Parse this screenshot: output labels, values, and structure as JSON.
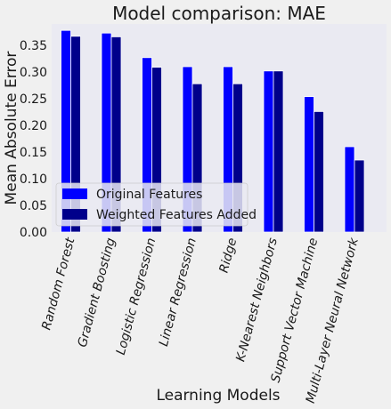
{
  "chart_data": {
    "type": "bar",
    "title": "Model comparison: MAE",
    "xlabel": "Learning Models",
    "ylabel": "Mean Absolute Error",
    "categories": [
      "Random Forest",
      "Gradient Boosting",
      "Logistic Regression",
      "Linear Regression",
      "Ridge",
      "K-Nearest Neighbors",
      "Support Vector Machine",
      "Multi-Layer Neural Network"
    ],
    "series": [
      {
        "name": "Original Features",
        "color": "#0000ff",
        "values": [
          0.378,
          0.373,
          0.327,
          0.31,
          0.31,
          0.302,
          0.254,
          0.16
        ]
      },
      {
        "name": "Weighted Features Added",
        "color": "#00008b",
        "values": [
          0.367,
          0.366,
          0.309,
          0.278,
          0.278,
          0.302,
          0.226,
          0.135
        ]
      }
    ],
    "ylim": [
      0,
      0.39
    ],
    "yticks": [
      "0.00",
      "0.05",
      "0.10",
      "0.15",
      "0.20",
      "0.25",
      "0.30",
      "0.35"
    ],
    "grid": false,
    "legend": "lower-left",
    "plot_background": "#eaeaf2"
  }
}
